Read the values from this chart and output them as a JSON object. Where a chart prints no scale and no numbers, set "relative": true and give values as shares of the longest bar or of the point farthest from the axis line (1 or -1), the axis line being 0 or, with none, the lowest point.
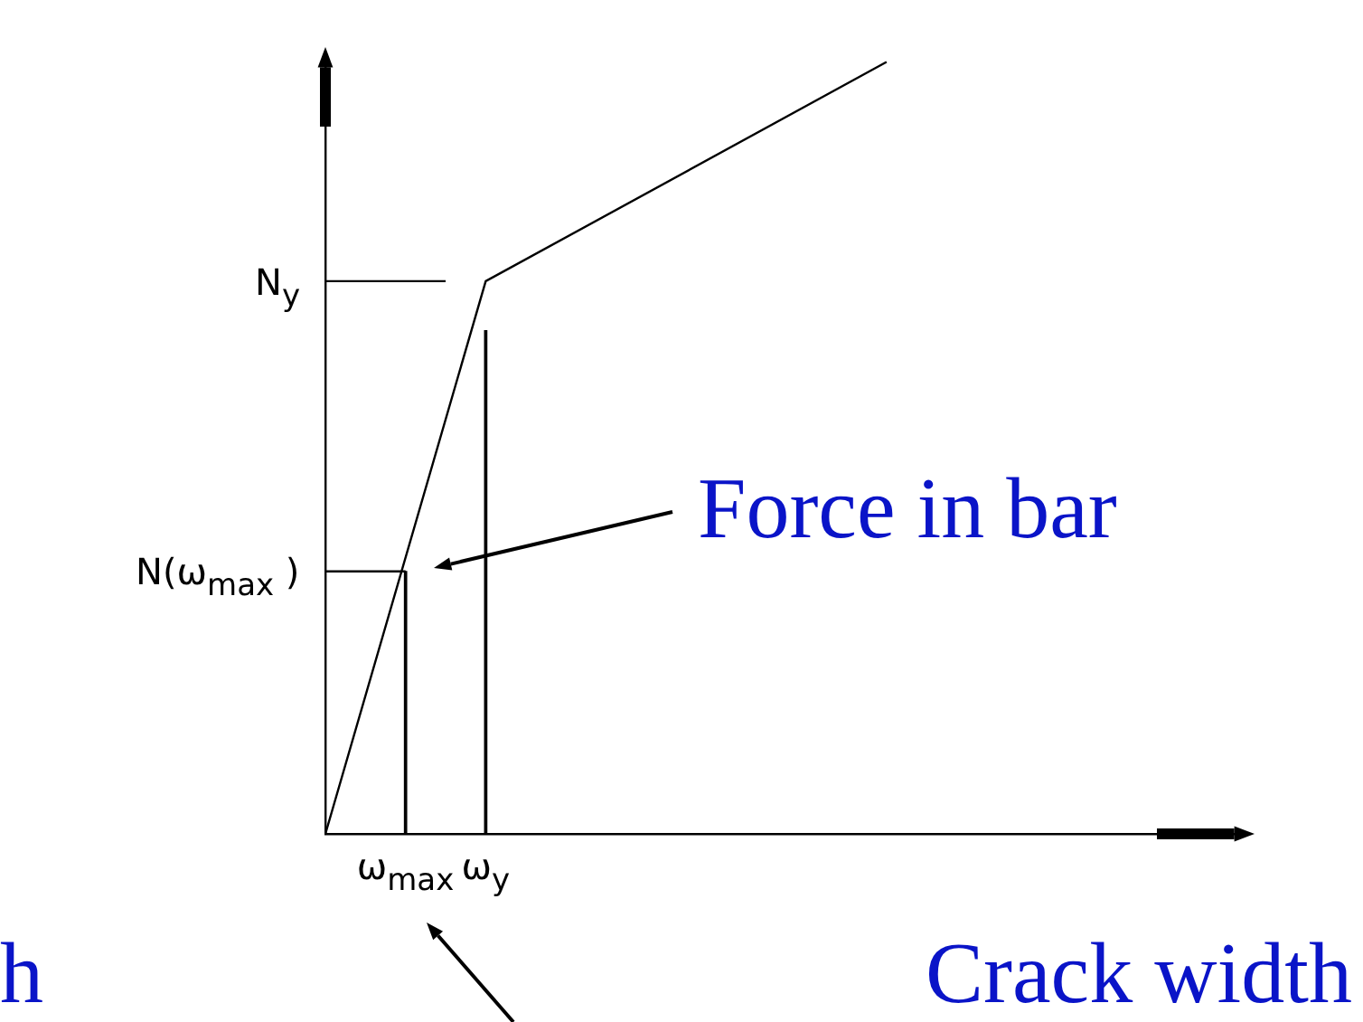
{
  "chart_data": {
    "type": "line",
    "relative": true,
    "categories": [
      null,
      null,
      "ω$_{max}$",
      null,
      "ω$_{y}$",
      null,
      null,
      null,
      null,
      null,
      null,
      null,
      null,
      null,
      null,
      null,
      null,
      null,
      null,
      null,
      null,
      null,
      null,
      null
    ],
    "grid": false,
    "legend": false,
    "marker": "none",
    "line_style": "solid",
    "series": [
      {
        "color": "#000000",
        "values": [
          0,
          null,
          null,
          null,
          0.716,
          null,
          null,
          null,
          null,
          null,
          null,
          null,
          null,
          null,
          1.0,
          null,
          null,
          null,
          null,
          null,
          null,
          null,
          null,
          null
        ]
      },
      {
        "color": "#000000",
        "values": [
          0.716,
          null,
          null,
          0.716,
          null,
          null,
          null,
          null,
          null,
          null,
          null,
          null,
          null,
          null,
          null,
          null,
          null,
          null,
          null,
          null,
          null,
          null,
          null,
          null
        ]
      },
      {
        "color": "#000000",
        "values": [
          0.34,
          null,
          0.34,
          null,
          null,
          null,
          null,
          null,
          null,
          null,
          null,
          null,
          null,
          null,
          null,
          null,
          null,
          null,
          null,
          null,
          null,
          null,
          null,
          null
        ]
      },
      {
        "type": "bar",
        "color": "#000000",
        "values": [
          null,
          null,
          0.34,
          null,
          0.652,
          null,
          null,
          null,
          null,
          null,
          null,
          null,
          null,
          null,
          null,
          null,
          null,
          null,
          null,
          null,
          null,
          null,
          null,
          null
        ]
      }
    ],
    "annotations": [
      "N$_{y}$",
      "N(ω$_{max}$ )",
      "Force in bar",
      "h",
      "Crack width"
    ]
  }
}
